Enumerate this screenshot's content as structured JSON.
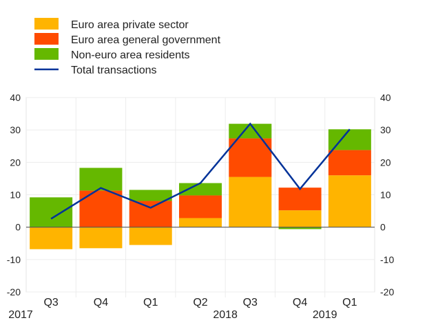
{
  "chart_data": {
    "type": "bar",
    "stacked": true,
    "title": "",
    "xlabel": "",
    "ylabel": "",
    "ylim": [
      -20,
      40
    ],
    "yticks": [
      -20,
      -10,
      0,
      10,
      20,
      30,
      40
    ],
    "ytick_labels": [
      "-20",
      "-10",
      "0",
      "10",
      "20",
      "30",
      "40"
    ],
    "grid": true,
    "legend_position": "top-left",
    "categories": [
      "Q3",
      "Q4",
      "Q1",
      "Q2",
      "Q3",
      "Q4",
      "Q1"
    ],
    "year_labels": [
      {
        "label": "2017",
        "category_index": 0
      },
      {
        "label": "2018",
        "category_index": 4
      },
      {
        "label": "2019",
        "category_index": 6
      }
    ],
    "series": [
      {
        "name": "Euro area private sector",
        "kind": "bar",
        "color": "#FFB400",
        "values": [
          -6.8,
          -6.5,
          -5.5,
          2.8,
          15.5,
          5.2,
          16.0
        ]
      },
      {
        "name": "Euro area general government",
        "kind": "bar",
        "color": "#FF4B00",
        "values": [
          0.0,
          11.3,
          8.1,
          7.0,
          11.9,
          7.0,
          7.8
        ]
      },
      {
        "name": "Non-euro area residents",
        "kind": "bar",
        "color": "#65B800",
        "values": [
          9.2,
          7.0,
          3.4,
          3.8,
          4.5,
          -0.6,
          6.4
        ]
      },
      {
        "name": "Total transactions",
        "kind": "line",
        "color": "#003299",
        "values": [
          2.6,
          12.1,
          6.0,
          13.6,
          31.9,
          11.8,
          30.2
        ]
      }
    ]
  }
}
